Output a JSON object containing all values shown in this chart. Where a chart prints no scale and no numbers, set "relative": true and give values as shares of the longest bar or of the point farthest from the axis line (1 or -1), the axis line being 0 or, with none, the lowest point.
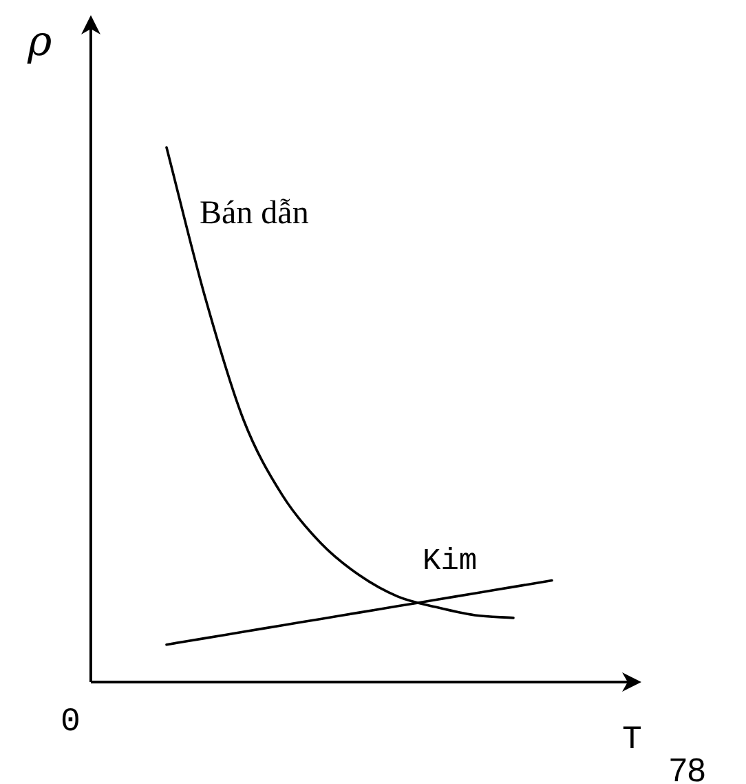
{
  "chart_data": {
    "type": "line",
    "relative": true,
    "xlabel": "T",
    "ylabel": "ρ",
    "categories": [
      null,
      null,
      null,
      null,
      null,
      null,
      null,
      null,
      null,
      null,
      null
    ],
    "series": [
      {
        "name": "Bán dẫn",
        "color": "#000000",
        "values": [
          1,
          0.72,
          0.49,
          0.35,
          0.26,
          0.2,
          0.16,
          0.14,
          0.125,
          0.12,
          null
        ]
      },
      {
        "name": "Kim",
        "color": "#000000",
        "values": [
          0.07,
          0.082,
          0.094,
          0.106,
          0.118,
          0.13,
          0.142,
          0.154,
          0.166,
          0.178,
          0.19
        ]
      }
    ],
    "annotations": [
      "0",
      "78"
    ],
    "legend": false,
    "marker": "none",
    "line_style": "solid"
  }
}
